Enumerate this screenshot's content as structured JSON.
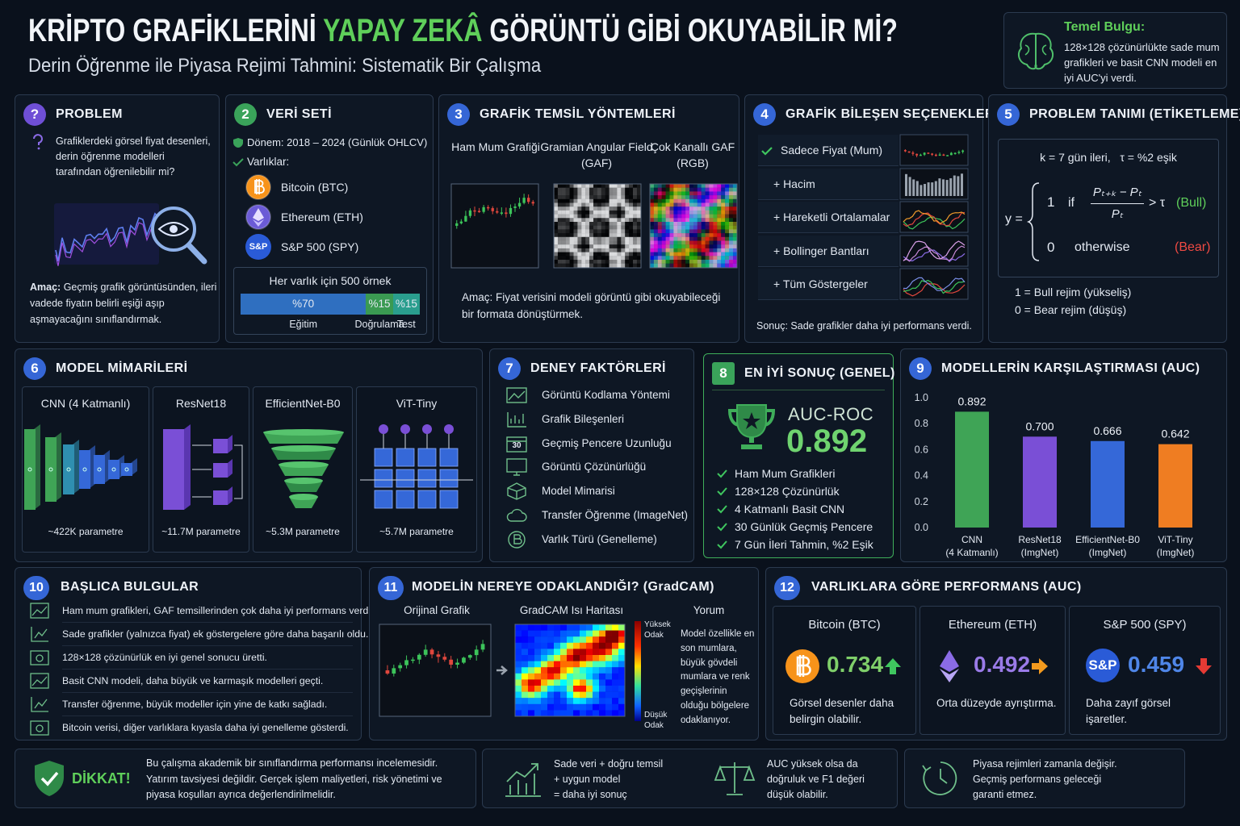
{
  "header": {
    "title_start": "KRİPTO GRAFİKLERİNİ",
    "title_highlight": "YAPAY ZEKÂ",
    "title_end": "GÖRÜNTÜ GİBİ OKUYABİLİR Mİ?",
    "subtitle": "Derin Öğrenme ile Piyasa Rejimi Tahmini: Sistematik Bir Çalışma"
  },
  "key_finding": {
    "title": "Temel Bulgu:",
    "text": "128×128 çözünürlükte sade mum grafikleri ve basit CNN modeli en iyi AUC'yi verdi."
  },
  "problem": {
    "number": "?",
    "title": "PROBLEM",
    "question": "Grafiklerdeki görsel fiyat desenleri, derin öğrenme modelleri tarafından öğrenilebilir mi?",
    "goal_label": "Amaç:",
    "goal": "Geçmiş grafik görüntüsünden, ileri vadede fiyatın belirli eşiği aşıp aşmayacağını sınıflandırmak."
  },
  "dataset": {
    "number": 2,
    "title": "VERİ SETİ",
    "period": "Dönem: 2018 – 2024 (Günlük OHLCV)",
    "assets_label": "Varlıklar:",
    "assets": [
      "Bitcoin (BTC)",
      "Ethereum (ETH)",
      "S&P 500 (SPY)"
    ],
    "spy_icon": "S&P",
    "samples": "Her varlık için 500 örnek",
    "split": [
      {
        "value": 70,
        "label": "%70",
        "name": "Eğitim"
      },
      {
        "value": 15,
        "label": "%15",
        "name": "Doğrulama"
      },
      {
        "value": 15,
        "label": "%15",
        "name": "Test"
      }
    ]
  },
  "representations": {
    "number": 3,
    "title": "GRAFİK TEMSİL YÖNTEMLERİ",
    "methods": [
      "Ham\nMum Grafiği",
      "Gramian Angular\nField (GAF)",
      "Çok Kanallı\nGAF (RGB)"
    ],
    "goal_label": "Amaç:",
    "goal": "Fiyat verisini modeli görüntü gibi okuyabileceği bir formata dönüştürmek."
  },
  "components": {
    "number": 4,
    "title": "GRAFİK BİLEŞEN SEÇENEKLERİ",
    "options": [
      "Sadece Fiyat (Mum)",
      "+ Hacim",
      "+ Hareketli Ortalamalar",
      "+ Bollinger Bantları",
      "+ Tüm Göstergeler"
    ],
    "conclusion_label": "Sonuç:",
    "conclusion": "Sade grafikler daha iyi performans verdi."
  },
  "labeling": {
    "number": 5,
    "title": "PROBLEM TANIMI (ETİKETLEME)",
    "params": "k = 7 gün ileri,   τ = %2 eşik",
    "formula": {
      "lhs": "y =",
      "case1_value": "1",
      "case1_if": "if",
      "numerator": "Pₜ₊ₖ − Pₜ",
      "denominator": "Pₜ",
      "condition": "> τ",
      "case1_label": "(Bull)",
      "case2_value": "0",
      "case2_condition": "otherwise",
      "case2_label": "(Bear)"
    },
    "legend": [
      "1 = Bull rejim (yükseliş)",
      "0 = Bear rejim (düşüş)"
    ]
  },
  "models": {
    "number": 6,
    "title": "MODEL MİMARİLERİ",
    "items": [
      {
        "name": "CNN (4 Katmanlı)",
        "params": "~422K parametre"
      },
      {
        "name": "ResNet18",
        "params": "~11.7M parametre"
      },
      {
        "name": "EfficientNet-B0",
        "params": "~5.3M parametre"
      },
      {
        "name": "ViT-Tiny",
        "params": "~5.7M parametre"
      }
    ]
  },
  "factors": {
    "number": 7,
    "title": "DENEY FAKTÖRLERİ",
    "calendar_icon": "30",
    "items": [
      "Görüntü Kodlama Yöntemi",
      "Grafik Bileşenleri",
      "Geçmiş Pencere Uzunluğu",
      "Görüntü Çözünürlüğü",
      "Model Mimarisi",
      "Transfer Öğrenme (ImageNet)",
      "Varlık Türü (Genelleme)"
    ]
  },
  "best_result": {
    "number": 8,
    "title": "EN İYİ SONUÇ (GENEL)",
    "metric": "AUC-ROC",
    "value": 0.892,
    "items": [
      "Ham Mum Grafikleri",
      "128×128 Çözünürlük",
      "4 Katmanlı Basit CNN",
      "30 Günlük Geçmiş Pencere",
      "7 Gün İleri Tahmin, %2 Eşik"
    ]
  },
  "comparison": {
    "number": 9,
    "title": "MODELLERİN KARŞILAŞTIRMASI (AUC)"
  },
  "chart_data": {
    "type": "bar",
    "categories": [
      "CNN\n(4 Katmanlı)",
      "ResNet18\n(ImgNet)",
      "EfficientNet-B0\n(ImgNet)",
      "ViT-Tiny\n(ImgNet)"
    ],
    "values": [
      0.892,
      0.7,
      0.666,
      0.642
    ],
    "value_labels": [
      "0.892",
      "0.700",
      "0.666",
      "0.642"
    ],
    "colors": [
      "#3fa456",
      "#7a4fd6",
      "#3568d8",
      "#ef7d22"
    ],
    "ylim": [
      0,
      1
    ],
    "yticks": [
      {
        "value": 0,
        "label": "0.0"
      },
      0.2,
      0.4,
      0.6,
      0.8,
      {
        "value": 1,
        "label": "1.0"
      }
    ],
    "grid": false
  },
  "findings": {
    "number": 10,
    "title": "BAŞLICA BULGULAR",
    "items": [
      "Ham mum grafikleri, GAF temsillerinden çok daha iyi performans verdi.",
      "Sade grafikler (yalnızca fiyat) ek göstergelere göre daha başarılı oldu.",
      "128×128 çözünürlük en iyi genel sonucu üretti.",
      "Basit CNN modeli, daha büyük ve karmaşık modelleri geçti.",
      "Transfer öğrenme, büyük modeller için yine de katkı sağladı.",
      "Bitcoin verisi, diğer varlıklara kıyasla daha iyi genelleme gösterdi."
    ]
  },
  "gradcam": {
    "number": 11,
    "title": "MODELİN NEREYE ODAKLANDIĞI? (GradCAM)",
    "columns": [
      "Orijinal Grafik",
      "GradCAM Isı Haritası",
      "Yorum"
    ],
    "scale_high": "Yüksek\nOdak",
    "scale_low": "Düşük\nOdak",
    "comment": "Model özellikle en son mumlara, büyük gövdeli mumlara ve renk geçişlerinin olduğu bölgelere odaklanıyor."
  },
  "asset_performance": {
    "number": 12,
    "title": "VARLIKLARA GÖRE PERFORMANS (AUC)",
    "spy_icon": "S&P",
    "items": [
      {
        "name": "Bitcoin (BTC)",
        "auc": 0.734,
        "note": "Görsel desenler daha belirgin olabilir."
      },
      {
        "name": "Ethereum (ETH)",
        "auc": 0.492,
        "note": "Orta düzeyde ayrıştırma."
      },
      {
        "name": "S&P 500 (SPY)",
        "auc": 0.459,
        "note": "Daha zayıf görsel işaretler."
      }
    ]
  },
  "footer": {
    "warning_title": "DİKKAT!",
    "warning": "Bu çalışma akademik bir sınıflandırma performansı incelemesidir. Yatırım tavsiyesi değildir. Gerçek işlem maliyetleri, risk yönetimi ve piyasa koşulları ayrıca değerlendirilmelidir.",
    "notes": [
      "Sade veri + doğru temsil\n+ uygun model\n= daha iyi sonuç",
      "AUC yüksek olsa da\ndoğruluk ve F1 değeri\ndüşük olabilir.",
      "Piyasa rejimleri zamanla değişir.\nGeçmiş performans geleceği\ngaranti etmez."
    ]
  }
}
